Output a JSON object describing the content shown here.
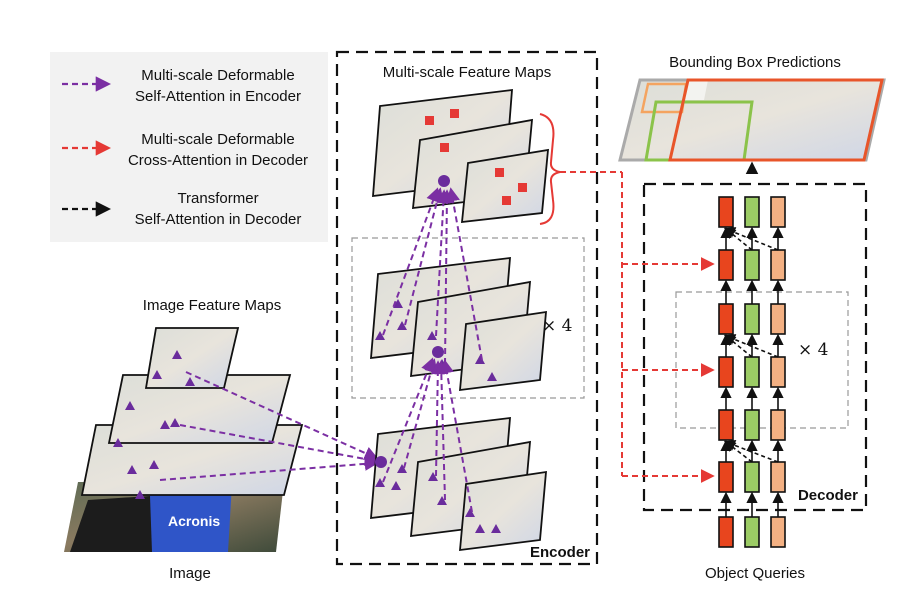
{
  "legend": {
    "items": [
      {
        "line1": "Multi-scale Deformable",
        "line2": "Self-Attention in Encoder",
        "color": "#7b2fa3"
      },
      {
        "line1": "Multi-scale Deformable",
        "line2": "Cross-Attention in Decoder",
        "color": "#e53935"
      },
      {
        "line1": "Transformer",
        "line2": "Self-Attention in Decoder",
        "color": "#111111"
      }
    ]
  },
  "labels": {
    "image": "Image",
    "image_feature_maps": "Image Feature Maps",
    "multiscale_feature_maps": "Multi-scale Feature Maps",
    "encoder": "Encoder",
    "decoder": "Decoder",
    "bbox_predictions": "Bounding Box Predictions",
    "object_queries": "Object Queries",
    "encoder_repeat": "× 4",
    "decoder_repeat": "× 4"
  },
  "photo": {
    "sponsor_text": "Acronis"
  },
  "colors": {
    "purple": "#7b2fa3",
    "red": "#e53935",
    "query_red": "#e8451e",
    "query_green": "#9ccc65",
    "query_peach": "#f4b183",
    "photo_blue": "#2f55c8",
    "box_orange": "#e8552a",
    "box_green": "#8bc34a",
    "box_orange_light": "#f4a460"
  }
}
